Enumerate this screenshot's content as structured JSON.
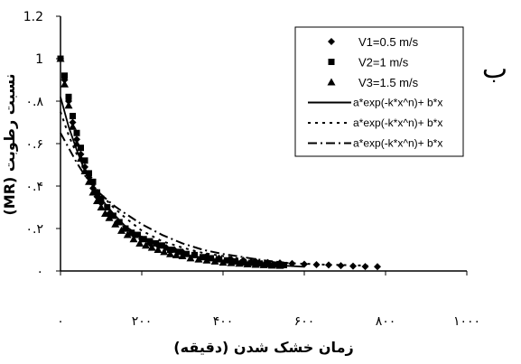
{
  "chart_data": {
    "type": "scatter",
    "panel_label": "ب",
    "xlabel": "زمان خشک شدن (دقیقه)",
    "ylabel": "نسبت رطوبت (MR)",
    "xlim": [
      0,
      1000
    ],
    "ylim": [
      0,
      1.2
    ],
    "x_ticks": [
      0,
      200,
      400,
      600,
      800,
      1000
    ],
    "x_tick_labels": [
      "۰",
      "۲۰۰",
      "۴۰۰",
      "۶۰۰",
      "۸۰۰",
      "۱۰۰۰"
    ],
    "y_ticks": [
      0,
      0.2,
      0.4,
      0.6,
      0.8,
      1.0,
      1.2
    ],
    "y_tick_labels": [
      "۰",
      "۰.۲",
      "۰.۴",
      "۰.۶",
      "۰.۸",
      "1",
      "1.2"
    ],
    "grid": false,
    "legend_position": "top-right",
    "series": [
      {
        "name": "V1=0.5 m/s",
        "kind": "points",
        "marker": "diamond",
        "x": [
          0,
          10,
          20,
          30,
          40,
          50,
          60,
          70,
          80,
          90,
          100,
          120,
          140,
          160,
          180,
          200,
          220,
          240,
          260,
          280,
          300,
          330,
          360,
          390,
          420,
          450,
          480,
          510,
          540,
          570,
          600,
          630,
          660,
          690,
          720,
          750,
          780
        ],
        "y": [
          1.0,
          0.9,
          0.8,
          0.7,
          0.62,
          0.55,
          0.49,
          0.44,
          0.39,
          0.35,
          0.32,
          0.27,
          0.23,
          0.2,
          0.17,
          0.15,
          0.13,
          0.12,
          0.11,
          0.1,
          0.09,
          0.08,
          0.07,
          0.06,
          0.055,
          0.05,
          0.045,
          0.04,
          0.038,
          0.035,
          0.032,
          0.03,
          0.028,
          0.025,
          0.023,
          0.021,
          0.02
        ]
      },
      {
        "name": "V2=1 m/s",
        "kind": "points",
        "marker": "square",
        "x": [
          0,
          10,
          20,
          30,
          40,
          50,
          60,
          70,
          80,
          90,
          100,
          115,
          130,
          145,
          160,
          175,
          190,
          205,
          220,
          235,
          250,
          270,
          290,
          310,
          330,
          350,
          370,
          390,
          410,
          430,
          450,
          470,
          490,
          510,
          530,
          550
        ],
        "y": [
          1.0,
          0.92,
          0.82,
          0.73,
          0.65,
          0.58,
          0.52,
          0.46,
          0.42,
          0.37,
          0.34,
          0.3,
          0.26,
          0.23,
          0.2,
          0.18,
          0.17,
          0.15,
          0.14,
          0.13,
          0.12,
          0.1,
          0.09,
          0.08,
          0.075,
          0.065,
          0.06,
          0.055,
          0.05,
          0.045,
          0.04,
          0.038,
          0.035,
          0.032,
          0.03,
          0.028
        ]
      },
      {
        "name": "V3=1.5 m/s",
        "kind": "points",
        "marker": "triangle",
        "x": [
          0,
          10,
          20,
          30,
          40,
          50,
          60,
          70,
          80,
          90,
          100,
          110,
          120,
          135,
          150,
          165,
          180,
          195,
          210,
          225,
          240,
          255,
          270,
          285,
          300,
          320,
          340,
          360,
          380,
          400,
          420,
          440,
          460,
          480,
          500,
          520,
          540
        ],
        "y": [
          1.0,
          0.88,
          0.78,
          0.68,
          0.6,
          0.53,
          0.47,
          0.42,
          0.37,
          0.33,
          0.3,
          0.27,
          0.25,
          0.22,
          0.19,
          0.17,
          0.15,
          0.13,
          0.12,
          0.11,
          0.1,
          0.09,
          0.08,
          0.075,
          0.07,
          0.06,
          0.055,
          0.05,
          0.045,
          0.04,
          0.038,
          0.035,
          0.032,
          0.03,
          0.028,
          0.026,
          0.025
        ]
      },
      {
        "name": "a*exp(-k*x^n)+ b*x",
        "kind": "line",
        "dash": "solid",
        "x": [
          0,
          20,
          40,
          60,
          80,
          100,
          130,
          160,
          200,
          250,
          300,
          350,
          400,
          450,
          500,
          550,
          600
        ],
        "y": [
          0.82,
          0.68,
          0.57,
          0.47,
          0.4,
          0.34,
          0.27,
          0.21,
          0.16,
          0.11,
          0.08,
          0.06,
          0.045,
          0.035,
          0.03,
          0.025,
          0.02
        ]
      },
      {
        "name": "a*exp(-k*x^n)+ b*x",
        "kind": "line",
        "dash": "dotted",
        "x": [
          0,
          20,
          40,
          60,
          80,
          100,
          130,
          160,
          200,
          250,
          300,
          350,
          400,
          450,
          500,
          550,
          650,
          760
        ],
        "y": [
          0.75,
          0.64,
          0.55,
          0.47,
          0.41,
          0.36,
          0.3,
          0.25,
          0.19,
          0.14,
          0.11,
          0.085,
          0.07,
          0.055,
          0.045,
          0.038,
          0.03,
          0.025
        ]
      },
      {
        "name": "a*exp(-k*x^n)+ b*x",
        "kind": "line",
        "dash": "dashdot",
        "x": [
          0,
          20,
          40,
          60,
          80,
          100,
          130,
          160,
          200,
          250,
          300,
          350,
          400,
          450,
          500,
          550
        ],
        "y": [
          0.65,
          0.58,
          0.51,
          0.45,
          0.4,
          0.36,
          0.31,
          0.27,
          0.22,
          0.17,
          0.13,
          0.1,
          0.08,
          0.065,
          0.05,
          0.04
        ]
      }
    ]
  }
}
